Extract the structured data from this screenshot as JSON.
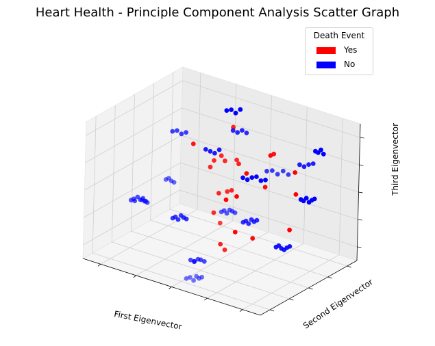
{
  "chart_data": {
    "type": "scatter",
    "projection": "3d",
    "title": "Heart Health - Principle Component Analysis Scatter Graph",
    "xlabel": "First Eigenvector",
    "ylabel": "Second Eigenvector",
    "zlabel": "Third Eigenvector",
    "grid": true,
    "legend": {
      "title": "Death Event",
      "placement": "top-right",
      "entries": [
        {
          "label": "Yes",
          "color": "#ff0000"
        },
        {
          "label": "No",
          "color": "#0000ff"
        }
      ]
    },
    "series": [
      {
        "name": "Yes",
        "color": "#ff0000",
        "x": [
          0.04,
          -0.04,
          0.08,
          -0.05,
          0.12,
          -0.02,
          0.05,
          0.15,
          0.12,
          -0.08,
          0.28,
          -0.15,
          0.22,
          0.35,
          0.12,
          0.09,
          0.31,
          0.04,
          0.26,
          -0.35,
          0.02,
          -0.08,
          0.32,
          -0.02,
          -0.05,
          0.06
        ],
        "y": [
          0.02,
          -0.08,
          0.06,
          0.4,
          0.45,
          -0.02,
          -0.04,
          0.02,
          0.12,
          -0.1,
          0.92,
          0.38,
          0.5,
          0.42,
          -0.24,
          -0.05,
          0.95,
          0.44,
          0.52,
          0.04,
          -0.06,
          0.47,
          0.96,
          0.04,
          -0.08,
          0.1
        ],
        "z": [
          -0.85,
          -0.3,
          0.02,
          -0.78,
          -0.82,
          -0.03,
          0.48,
          0.51,
          0.4,
          0.36,
          -0.82,
          -0.34,
          -0.05,
          0.52,
          -0.32,
          0.05,
          0.02,
          0.1,
          0.42,
          0.53,
          0.55,
          -0.3,
          -0.3,
          -0.8,
          0.46,
          0.92
        ]
      },
      {
        "name": "No",
        "color": "#0000ff",
        "x": [
          -0.52,
          -0.5,
          -0.5,
          -0.48,
          -0.46,
          -0.44,
          -0.42,
          -0.42,
          -0.4,
          -0.38,
          -0.05,
          -0.02,
          0.01,
          -0.04,
          0.02,
          0.05,
          -0.12,
          -0.1,
          -0.08,
          -0.06,
          0.12,
          0.15,
          0.18,
          0.2,
          0.22,
          0.24,
          -0.3,
          -0.28,
          -0.26,
          -0.24,
          -0.22,
          -0.2,
          0.26,
          0.28,
          0.3,
          0.32,
          0.34,
          0.36,
          0.28,
          0.3,
          0.32,
          0.34,
          0.36,
          0.38,
          0.4,
          0.42,
          0.44,
          0.46,
          0.48,
          0.5,
          0.42,
          0.44,
          0.46,
          0.48,
          0.5,
          0.52,
          0.0,
          0.04,
          0.08,
          0.12,
          0.16,
          0.2,
          -0.2,
          -0.16,
          -0.12,
          -0.08,
          0.5,
          0.55,
          0.6,
          0.65,
          0.7,
          0.62,
          0.66,
          0.7,
          0.74,
          -0.3,
          -0.26,
          -0.22,
          -0.18,
          0.1,
          0.14,
          0.18,
          0.22,
          0.58,
          0.6,
          0.62,
          0.64,
          -0.2,
          -0.16,
          -0.12,
          -0.08
        ],
        "y": [
          -0.92,
          -0.9,
          -0.88,
          -0.86,
          -0.84,
          -0.82,
          -0.8,
          -0.88,
          -0.86,
          -0.84,
          -0.52,
          -0.5,
          -0.48,
          -0.46,
          -0.44,
          -0.42,
          -0.95,
          -0.93,
          -0.91,
          -0.89,
          -0.92,
          -0.9,
          -0.88,
          -0.86,
          -0.84,
          -0.82,
          -0.45,
          -0.43,
          -0.41,
          -0.39,
          -0.37,
          -0.35,
          -0.02,
          0.0,
          0.02,
          0.04,
          0.06,
          0.08,
          -0.52,
          -0.5,
          -0.48,
          -0.46,
          -0.44,
          -0.42,
          0.42,
          0.44,
          0.46,
          0.48,
          0.5,
          0.52,
          0.88,
          0.9,
          0.92,
          0.94,
          0.96,
          0.98,
          0.44,
          0.46,
          0.48,
          0.5,
          0.52,
          0.54,
          0.02,
          0.04,
          0.06,
          0.08,
          0.0,
          0.02,
          0.04,
          0.06,
          0.08,
          0.46,
          0.48,
          0.5,
          0.52,
          -0.5,
          -0.48,
          -0.46,
          -0.44,
          0.02,
          0.04,
          0.06,
          0.08,
          0.86,
          0.88,
          0.9,
          0.92,
          0.44,
          0.46,
          0.48,
          0.5
        ],
        "z": [
          0.02,
          0.04,
          0.0,
          0.06,
          0.02,
          0.04,
          0.0,
          0.05,
          0.03,
          0.01,
          -0.82,
          -0.84,
          -0.8,
          -0.86,
          -0.82,
          -0.84,
          0.5,
          0.52,
          0.48,
          0.46,
          -0.86,
          -0.84,
          -0.88,
          -0.82,
          -0.85,
          -0.83,
          -0.34,
          -0.32,
          -0.36,
          -0.3,
          -0.33,
          -0.35,
          -0.34,
          -0.32,
          -0.36,
          -0.3,
          -0.33,
          -0.31,
          0.02,
          0.04,
          0.0,
          0.05,
          0.03,
          0.01,
          -0.82,
          -0.8,
          -0.84,
          -0.86,
          -0.83,
          -0.81,
          -0.3,
          -0.32,
          -0.28,
          -0.34,
          -0.31,
          -0.29,
          0.02,
          0.0,
          0.04,
          0.06,
          0.01,
          0.03,
          0.52,
          0.5,
          0.48,
          0.54,
          0.5,
          0.52,
          0.48,
          0.54,
          0.5,
          0.46,
          0.44,
          0.48,
          0.5,
          0.95,
          0.97,
          0.93,
          0.96,
          0.92,
          0.9,
          0.94,
          0.91,
          0.48,
          0.46,
          0.5,
          0.44,
          0.92,
          0.94,
          0.9,
          0.96
        ]
      }
    ]
  }
}
